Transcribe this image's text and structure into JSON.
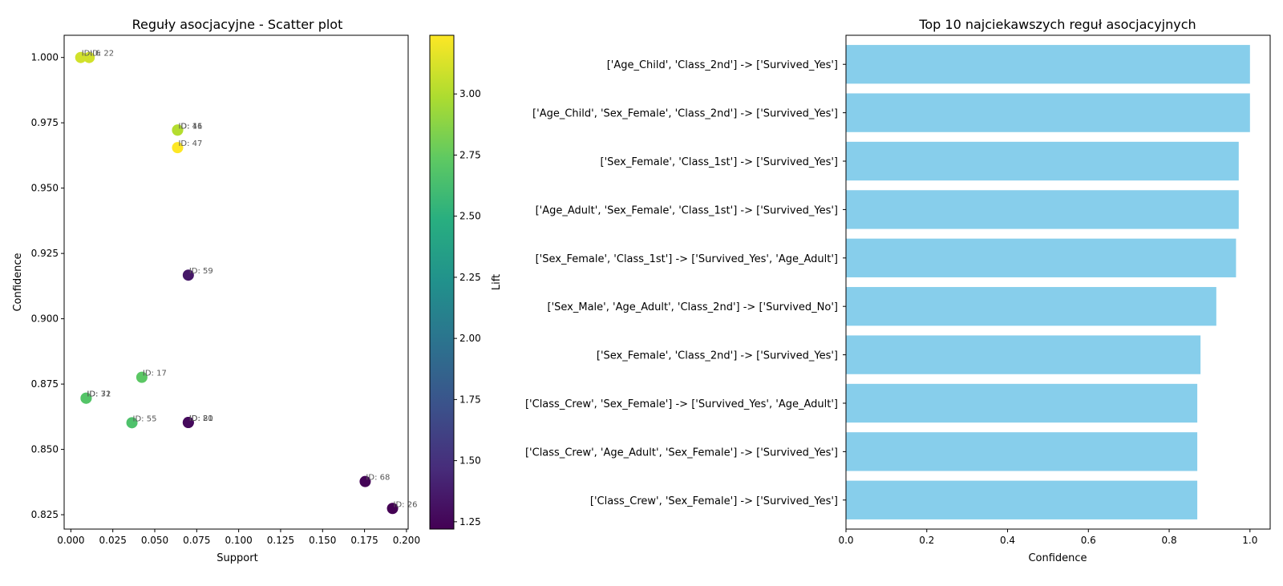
{
  "chart_data": [
    {
      "type": "scatter",
      "title": "Reguły asocjacyjne - Scatter plot",
      "xlabel": "Support",
      "ylabel": "Confidence",
      "xlim": [
        -0.004,
        0.201
      ],
      "ylim": [
        0.8195,
        1.0085
      ],
      "x_ticks": [
        0.0,
        0.025,
        0.05,
        0.075,
        0.1,
        0.125,
        0.15,
        0.175,
        0.2
      ],
      "x_tick_labels": [
        "0.000",
        "0.025",
        "0.050",
        "0.075",
        "0.100",
        "0.125",
        "0.150",
        "0.175",
        "0.200"
      ],
      "y_ticks": [
        0.825,
        0.85,
        0.875,
        0.9,
        0.925,
        0.95,
        0.975,
        1.0
      ],
      "y_tick_labels": [
        "0.825",
        "0.850",
        "0.875",
        "0.900",
        "0.925",
        "0.950",
        "0.975",
        "1.000"
      ],
      "grid": false,
      "colormap": "viridis",
      "colorbar": {
        "label": "Lift",
        "min": 1.22,
        "max": 3.24,
        "ticks": [
          1.25,
          1.5,
          1.75,
          2.0,
          2.25,
          2.5,
          2.75,
          3.0
        ],
        "tick_labels": [
          "1.25",
          "1.50",
          "1.75",
          "2.00",
          "2.25",
          "2.50",
          "2.75",
          "3.00"
        ]
      },
      "points": [
        {
          "id": "ID: 6",
          "support": 0.0059,
          "confidence": 1.0,
          "lift": 3.1
        },
        {
          "id": "ID: 22",
          "support": 0.0109,
          "confidence": 1.0,
          "lift": 3.1
        },
        {
          "id": "ID: 11",
          "support": 0.0636,
          "confidence": 0.9722,
          "lift": 3.01
        },
        {
          "id": "ID: 46",
          "support": 0.0636,
          "confidence": 0.9722,
          "lift": 3.01
        },
        {
          "id": "ID: 47",
          "support": 0.0636,
          "confidence": 0.9655,
          "lift": 3.24
        },
        {
          "id": "ID: 59",
          "support": 0.07,
          "confidence": 0.9167,
          "lift": 1.35
        },
        {
          "id": "ID: 17",
          "support": 0.0423,
          "confidence": 0.8776,
          "lift": 2.72
        },
        {
          "id": "ID: 31",
          "support": 0.0091,
          "confidence": 0.8696,
          "lift": 2.69
        },
        {
          "id": "ID: 72",
          "support": 0.0091,
          "confidence": 0.8696,
          "lift": 2.69
        },
        {
          "id": "ID: 55",
          "support": 0.0364,
          "confidence": 0.8602,
          "lift": 2.66
        },
        {
          "id": "ID: 80",
          "support": 0.07,
          "confidence": 0.8603,
          "lift": 1.27
        },
        {
          "id": "ID: 21",
          "support": 0.07,
          "confidence": 0.8603,
          "lift": 1.27
        },
        {
          "id": "ID: 68",
          "support": 0.1754,
          "confidence": 0.8377,
          "lift": 1.24
        },
        {
          "id": "ID: 26",
          "support": 0.1917,
          "confidence": 0.8274,
          "lift": 1.22
        }
      ]
    },
    {
      "type": "bar",
      "orientation": "horizontal",
      "title": "Top 10 najciekawszych reguł asocjacyjnych",
      "xlabel": "Confidence",
      "xlim": [
        0,
        1.05
      ],
      "x_ticks": [
        0,
        0.2,
        0.4,
        0.6,
        0.8,
        1.0
      ],
      "x_tick_labels": [
        "0.0",
        "0.2",
        "0.4",
        "0.6",
        "0.8",
        "1.0"
      ],
      "bar_color": "#87ceeb",
      "categories": [
        "['Age_Child', 'Class_2nd'] -> ['Survived_Yes']",
        "['Age_Child', 'Sex_Female', 'Class_2nd'] -> ['Survived_Yes']",
        "['Sex_Female', 'Class_1st'] -> ['Survived_Yes']",
        "['Age_Adult', 'Sex_Female', 'Class_1st'] -> ['Survived_Yes']",
        "['Sex_Female', 'Class_1st'] -> ['Survived_Yes', 'Age_Adult']",
        "['Sex_Male', 'Age_Adult', 'Class_2nd'] -> ['Survived_No']",
        "['Sex_Female', 'Class_2nd'] -> ['Survived_Yes']",
        "['Class_Crew', 'Sex_Female'] -> ['Survived_Yes', 'Age_Adult']",
        "['Class_Crew', 'Age_Adult', 'Sex_Female'] -> ['Survived_Yes']",
        "['Class_Crew', 'Sex_Female'] -> ['Survived_Yes']"
      ],
      "values": [
        1.0,
        1.0,
        0.9722,
        0.9722,
        0.9655,
        0.9167,
        0.8776,
        0.8696,
        0.8696,
        0.8696
      ]
    }
  ]
}
